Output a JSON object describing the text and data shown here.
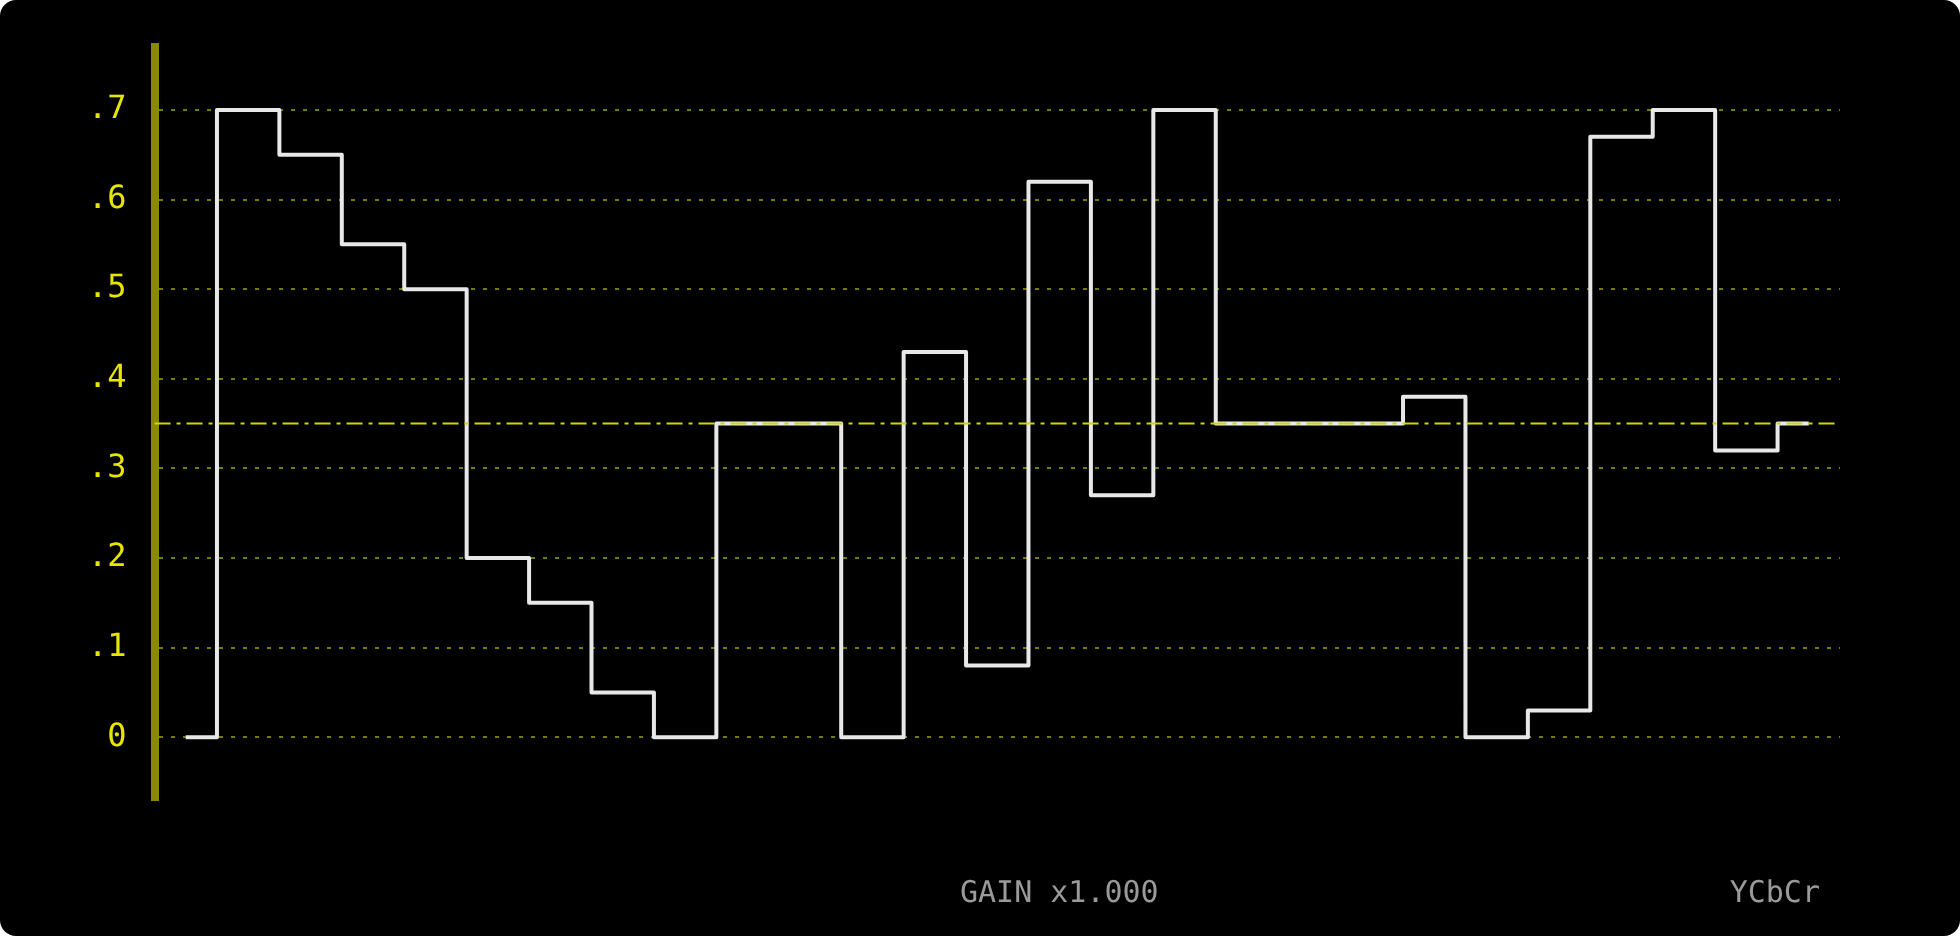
{
  "chart_data": {
    "type": "step",
    "categories": [
      null,
      null,
      null,
      null,
      null,
      null,
      null,
      null,
      null,
      null,
      null,
      null,
      null,
      null,
      null,
      null,
      null,
      null,
      null,
      null,
      null,
      null,
      null,
      null,
      null,
      null,
      null
    ],
    "series": [
      {
        "color": "#e8e8e8",
        "values": [
          0,
          0.7,
          0.65,
          0.55,
          0.5,
          0.2,
          0.15,
          0.05,
          0,
          0.35,
          0.35,
          0,
          0.43,
          0.08,
          0.62,
          0.27,
          0.7,
          0.35,
          0.35,
          0.35,
          0.38,
          0,
          0.03,
          0.67,
          0.7,
          0.32,
          0.35
        ]
      }
    ],
    "ylim": [
      -0.07,
      0.77
    ],
    "yticks": [
      0,
      {
        "value": 0.1,
        "label": ".1"
      },
      {
        "value": 0.2,
        "label": ".2"
      },
      {
        "value": 0.3,
        "label": ".3"
      },
      {
        "value": 0.4,
        "label": ".4"
      },
      {
        "value": 0.5,
        "label": ".5"
      },
      {
        "value": 0.6,
        "label": ".6"
      },
      {
        "value": 0.7,
        "label": ".7"
      }
    ],
    "grid": "y",
    "tick_labels": "y",
    "legend": false,
    "marker": "none",
    "line_style": "solid",
    "ref_lines": [
      {
        "axis": "y",
        "value": 0.35,
        "color": "#d4d400",
        "line_style": "dashdot"
      }
    ],
    "annotations": [
      "GAIN x1.000",
      "YCbCr"
    ]
  }
}
